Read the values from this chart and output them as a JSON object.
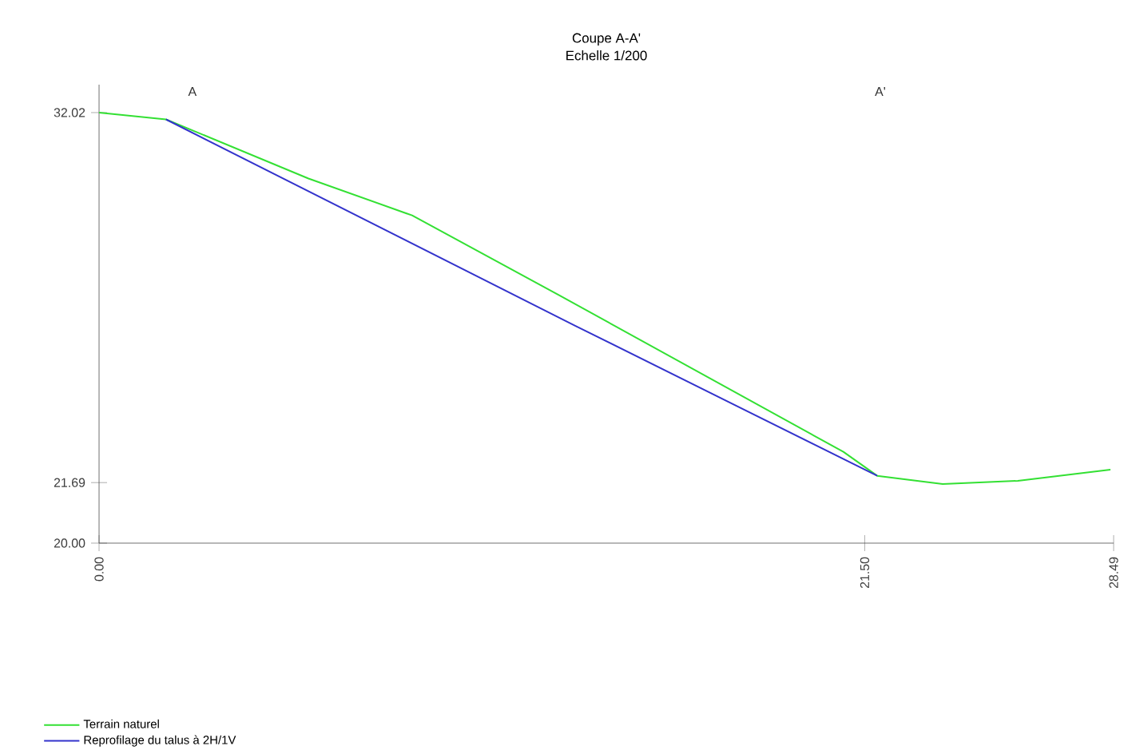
{
  "chart_data": {
    "type": "line",
    "title": "Coupe A-A'",
    "subtitle": "Echelle 1/200",
    "xlim": [
      0,
      28.49
    ],
    "ylim": [
      20,
      32.8
    ],
    "xticks": [
      {
        "value": 0,
        "label": "0.00"
      },
      {
        "value": 21.5,
        "label": "21.50"
      },
      {
        "value": 28.49,
        "label": "28.49"
      }
    ],
    "yticks": [
      {
        "value": 20,
        "label": "20.00"
      },
      {
        "value": 21.69,
        "label": "21.69"
      },
      {
        "value": 32.02,
        "label": "32.02"
      }
    ],
    "annotations": [
      "A",
      "A'"
    ],
    "series": [
      {
        "name": "Terrain naturel",
        "color": "#33e033",
        "x": [
          0,
          1.88,
          5.88,
          8.79,
          12.92,
          20.9,
          21.85,
          23.69,
          25.8,
          28.4
        ],
        "values": [
          32.02,
          31.83,
          30.18,
          29.15,
          26.92,
          22.55,
          21.88,
          21.65,
          21.74,
          22.05
        ]
      },
      {
        "name": "Reprofilage du talus à 2H/1V",
        "color": "#3333cc",
        "x": [
          1.88,
          13.37,
          21.85
        ],
        "values": [
          31.83,
          26.07,
          21.88
        ]
      }
    ],
    "legend": "bottom left",
    "grid": false
  }
}
